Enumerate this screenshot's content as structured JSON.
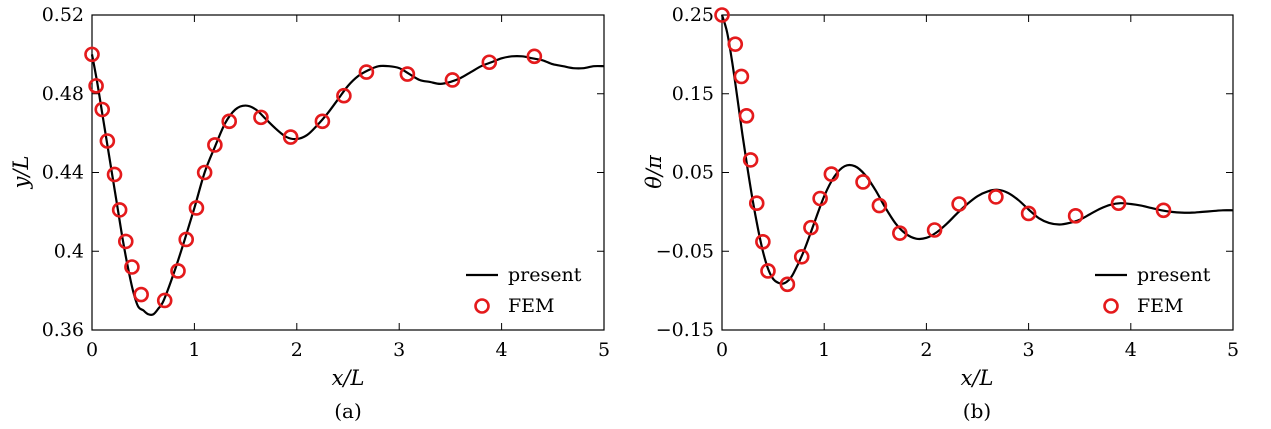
{
  "chart_data": [
    {
      "type": "line",
      "caption": "(a)",
      "xlabel": "x/L",
      "ylabel": "y/L",
      "xlim": [
        0,
        5
      ],
      "ylim": [
        0.36,
        0.52
      ],
      "xticks": [
        0,
        1,
        2,
        3,
        4,
        5
      ],
      "xtick_labels": [
        "0",
        "1",
        "2",
        "3",
        "4",
        "5"
      ],
      "yticks": [
        0.36,
        0.4,
        0.44,
        0.48,
        0.52
      ],
      "ytick_labels": [
        "0.36",
        "0.4",
        "0.44",
        "0.48",
        "0.52"
      ],
      "legend": [
        "present",
        "FEM"
      ],
      "legend_position": "bottom-right",
      "series": [
        {
          "name": "present",
          "style": "line",
          "color": "#000000",
          "x": [
            0,
            0.05,
            0.1,
            0.15,
            0.2,
            0.25,
            0.3,
            0.35,
            0.4,
            0.45,
            0.5,
            0.55,
            0.6,
            0.65,
            0.7,
            0.8,
            0.9,
            1.0,
            1.1,
            1.2,
            1.3,
            1.4,
            1.5,
            1.6,
            1.7,
            1.8,
            1.9,
            2.0,
            2.1,
            2.2,
            2.3,
            2.4,
            2.5,
            2.6,
            2.7,
            2.8,
            2.9,
            3.0,
            3.1,
            3.2,
            3.3,
            3.4,
            3.5,
            3.6,
            3.7,
            3.8,
            3.9,
            4.0,
            4.1,
            4.2,
            4.3,
            4.4,
            4.5,
            4.6,
            4.7,
            4.8,
            4.9,
            5.0
          ],
          "y": [
            0.5,
            0.486,
            0.47,
            0.454,
            0.438,
            0.422,
            0.406,
            0.392,
            0.38,
            0.372,
            0.37,
            0.368,
            0.368,
            0.371,
            0.375,
            0.389,
            0.405,
            0.422,
            0.44,
            0.453,
            0.465,
            0.472,
            0.474,
            0.472,
            0.467,
            0.462,
            0.458,
            0.457,
            0.459,
            0.464,
            0.47,
            0.477,
            0.484,
            0.489,
            0.492,
            0.494,
            0.494,
            0.493,
            0.49,
            0.487,
            0.486,
            0.485,
            0.486,
            0.488,
            0.491,
            0.494,
            0.496,
            0.498,
            0.499,
            0.499,
            0.498,
            0.497,
            0.495,
            0.494,
            0.493,
            0.493,
            0.494,
            0.494
          ]
        },
        {
          "name": "FEM",
          "style": "marker",
          "color": "#e41a1c",
          "x": [
            0.0,
            0.04,
            0.1,
            0.15,
            0.22,
            0.27,
            0.33,
            0.39,
            0.48,
            0.71,
            0.84,
            0.92,
            1.02,
            1.1,
            1.2,
            1.34,
            1.65,
            1.94,
            2.25,
            2.46,
            2.68,
            3.08,
            3.52,
            3.88,
            4.32
          ],
          "y": [
            0.5,
            0.484,
            0.472,
            0.456,
            0.439,
            0.421,
            0.405,
            0.392,
            0.378,
            0.375,
            0.39,
            0.406,
            0.422,
            0.44,
            0.454,
            0.466,
            0.468,
            0.458,
            0.466,
            0.479,
            0.491,
            0.49,
            0.487,
            0.496,
            0.499
          ]
        }
      ]
    },
    {
      "type": "line",
      "caption": "(b)",
      "xlabel": "x/L",
      "ylabel": "θ/π",
      "xlim": [
        0,
        5
      ],
      "ylim": [
        -0.15,
        0.25
      ],
      "xticks": [
        0,
        1,
        2,
        3,
        4,
        5
      ],
      "xtick_labels": [
        "0",
        "1",
        "2",
        "3",
        "4",
        "5"
      ],
      "yticks": [
        -0.15,
        -0.05,
        0.05,
        0.15,
        0.25
      ],
      "ytick_labels": [
        "−0.15",
        "−0.05",
        "0.05",
        "0.15",
        "0.25"
      ],
      "legend": [
        "present",
        "FEM"
      ],
      "legend_position": "bottom-right",
      "series": [
        {
          "name": "present",
          "style": "line",
          "color": "#000000",
          "x": [
            0,
            0.05,
            0.1,
            0.15,
            0.2,
            0.25,
            0.3,
            0.35,
            0.4,
            0.45,
            0.5,
            0.55,
            0.6,
            0.65,
            0.7,
            0.8,
            0.9,
            1.0,
            1.1,
            1.2,
            1.3,
            1.4,
            1.5,
            1.6,
            1.7,
            1.8,
            1.9,
            2.0,
            2.1,
            2.2,
            2.3,
            2.4,
            2.5,
            2.6,
            2.7,
            2.8,
            2.9,
            3.0,
            3.1,
            3.2,
            3.3,
            3.4,
            3.5,
            3.6,
            3.7,
            3.8,
            3.9,
            4.0,
            4.1,
            4.2,
            4.3,
            4.4,
            4.5,
            4.6,
            4.7,
            4.8,
            4.9,
            5.0
          ],
          "y": [
            0.25,
            0.228,
            0.19,
            0.145,
            0.098,
            0.055,
            0.015,
            -0.02,
            -0.05,
            -0.072,
            -0.085,
            -0.09,
            -0.091,
            -0.087,
            -0.078,
            -0.05,
            -0.015,
            0.02,
            0.045,
            0.058,
            0.058,
            0.047,
            0.028,
            0.005,
            -0.015,
            -0.028,
            -0.034,
            -0.033,
            -0.026,
            -0.015,
            -0.002,
            0.01,
            0.02,
            0.026,
            0.028,
            0.024,
            0.015,
            0.003,
            -0.008,
            -0.014,
            -0.016,
            -0.014,
            -0.01,
            -0.003,
            0.004,
            0.009,
            0.011,
            0.01,
            0.008,
            0.005,
            0.002,
            0.0,
            -0.001,
            -0.001,
            0.0,
            0.001,
            0.002,
            0.002
          ]
        },
        {
          "name": "FEM",
          "style": "marker",
          "color": "#e41a1c",
          "x": [
            0.0,
            0.13,
            0.19,
            0.24,
            0.28,
            0.34,
            0.4,
            0.45,
            0.64,
            0.78,
            0.87,
            0.96,
            1.07,
            1.38,
            1.54,
            1.74,
            2.08,
            2.32,
            2.68,
            3.0,
            3.46,
            3.88,
            4.32
          ],
          "y": [
            0.25,
            0.213,
            0.172,
            0.122,
            0.066,
            0.011,
            -0.038,
            -0.075,
            -0.092,
            -0.057,
            -0.02,
            0.017,
            0.048,
            0.038,
            0.008,
            -0.027,
            -0.023,
            0.01,
            0.019,
            -0.002,
            -0.005,
            0.011,
            0.002
          ]
        }
      ]
    }
  ]
}
